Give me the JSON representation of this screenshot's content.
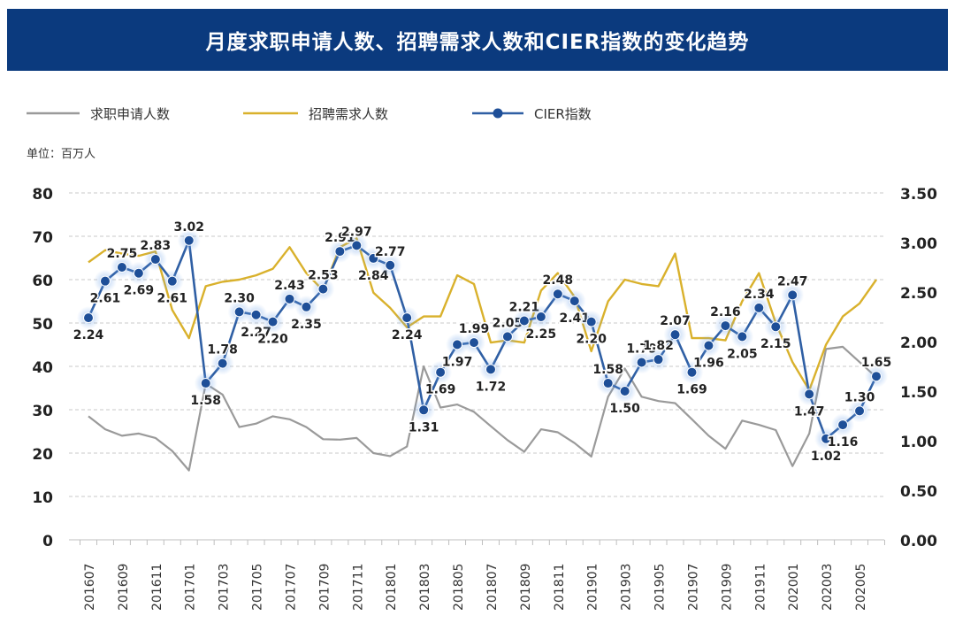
{
  "colors": {
    "title_bg": "#0b3a7e",
    "applicants": "#9a9a9a",
    "demand": "#d9b12c",
    "cier": "#2f5fa4",
    "cier_marker": "#1e4f98",
    "grid": "#c9c9c9",
    "text": "#222222"
  },
  "chart_data": {
    "type": "line",
    "title": "月度求职申请人数、招聘需求人数和CIER指数的变化趋势",
    "unit_label": "单位：百万人",
    "legend_position": "top-left",
    "left_axis": {
      "ylim": [
        0,
        80
      ],
      "ticks": [
        "0",
        "10",
        "20",
        "30",
        "40",
        "50",
        "60",
        "70",
        "80"
      ]
    },
    "right_axis": {
      "ylim": [
        0,
        3.5
      ],
      "ticks": [
        "0.00",
        "0.50",
        "1.00",
        "1.50",
        "2.00",
        "2.50",
        "3.00",
        "3.50"
      ]
    },
    "x": [
      "201607",
      "201608",
      "201609",
      "201610",
      "201611",
      "201612",
      "201701",
      "201702",
      "201703",
      "201704",
      "201705",
      "201706",
      "201707",
      "201708",
      "201709",
      "201710",
      "201711",
      "201712",
      "201801",
      "201802",
      "201803",
      "201804",
      "201805",
      "201806",
      "201807",
      "201808",
      "201809",
      "201810",
      "201811",
      "201812",
      "201901",
      "201902",
      "201903",
      "201904",
      "201905",
      "201906",
      "201907",
      "201908",
      "201909",
      "201910",
      "201911",
      "201912",
      "202001",
      "202002",
      "202003",
      "202004",
      "202005",
      "202006"
    ],
    "x_tick_labels": [
      "201607",
      "201609",
      "201611",
      "201701",
      "201703",
      "201705",
      "201707",
      "201709",
      "201711",
      "201801",
      "201803",
      "201805",
      "201807",
      "201809",
      "201811",
      "201901",
      "201903",
      "201905",
      "201907",
      "201909",
      "201911",
      "202001",
      "202003",
      "202005"
    ],
    "series": [
      {
        "name": "求职申请人数",
        "axis": "left",
        "values": [
          28.5,
          25.5,
          24,
          24.5,
          23.5,
          20.5,
          16,
          36,
          33.5,
          26,
          26.8,
          28.5,
          27.8,
          26,
          23.2,
          23.1,
          23.5,
          20,
          19.3,
          21.5,
          40,
          30.5,
          31.2,
          29.5,
          26.2,
          23,
          20.3,
          25.5,
          24.8,
          22.3,
          19.2,
          33,
          39.5,
          33,
          32,
          31.5,
          27.8,
          24,
          21,
          27.5,
          26.5,
          25.3,
          17,
          24.5,
          44,
          44.5,
          41,
          37.5
        ]
      },
      {
        "name": "招聘需求人数",
        "axis": "left",
        "values": [
          64,
          66.8,
          66,
          65.5,
          66.5,
          53,
          46.5,
          58.5,
          59.5,
          60,
          61,
          62.5,
          67.5,
          61.5,
          57.5,
          67.5,
          69.5,
          57,
          53.5,
          49,
          51.5,
          51.5,
          61,
          59,
          45.5,
          46,
          45.5,
          57.5,
          61.5,
          56,
          43.5,
          55,
          60,
          59,
          58.5,
          66,
          46.5,
          46.5,
          46,
          55,
          61.5,
          50,
          41,
          34.5,
          45,
          51.5,
          54.5,
          60
        ]
      },
      {
        "name": "CIER指数",
        "axis": "right",
        "values": [
          2.24,
          2.61,
          2.75,
          2.69,
          2.83,
          2.61,
          3.02,
          1.58,
          1.78,
          2.3,
          2.27,
          2.2,
          2.43,
          2.35,
          2.53,
          2.91,
          2.97,
          2.84,
          2.77,
          2.24,
          1.31,
          1.69,
          1.97,
          1.99,
          1.72,
          2.05,
          2.21,
          2.25,
          2.48,
          2.41,
          2.2,
          1.58,
          1.5,
          1.79,
          1.82,
          2.07,
          1.69,
          1.96,
          2.16,
          2.05,
          2.34,
          2.15,
          2.47,
          1.47,
          1.02,
          1.16,
          1.3,
          1.65
        ],
        "labels": [
          "2.24",
          "2.61",
          "2.75",
          "2.69",
          "2.83",
          "2.61",
          "3.02",
          "1.58",
          "1.78",
          "2.30",
          "2.27",
          "2.20",
          "2.43",
          "2.35",
          "2.53",
          "2.91",
          "2.97",
          "2.84",
          "2.77",
          "2.24",
          "1.31",
          "1.69",
          "1.97",
          "1.99",
          "1.72",
          "2.05",
          "2.21",
          "2.25",
          "2.48",
          "2.41",
          "2.20",
          "1.58",
          "1.50",
          "1.79",
          "1.82",
          "2.07",
          "1.69",
          "1.96",
          "2.16",
          "2.05",
          "2.34",
          "2.15",
          "2.47",
          "1.47",
          "1.02",
          "1.16",
          "1.30",
          "1.65"
        ],
        "label_side": [
          "b",
          "b",
          "a",
          "b",
          "a",
          "b",
          "a",
          "b",
          "a",
          "a",
          "b",
          "b",
          "a",
          "b",
          "a",
          "a",
          "a",
          "b",
          "a",
          "b",
          "b",
          "b",
          "b",
          "a",
          "b",
          "a",
          "a",
          "b",
          "a",
          "b",
          "b",
          "a",
          "b",
          "a",
          "a",
          "a",
          "b",
          "b",
          "a",
          "b",
          "a",
          "b",
          "a",
          "b",
          "b",
          "b",
          "a",
          "a"
        ]
      }
    ]
  }
}
